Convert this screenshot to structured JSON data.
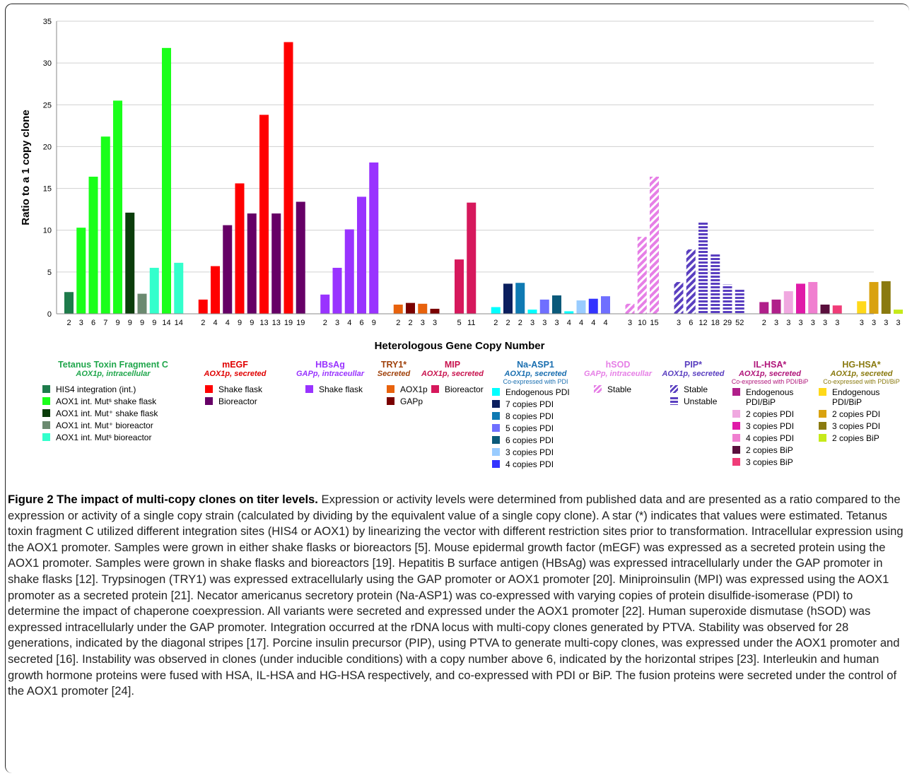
{
  "chart_data": {
    "type": "bar",
    "ylabel": "Ratio to a 1 copy clone",
    "xlabel": "Heterologous Gene Copy Number",
    "ylim": [
      0,
      35
    ],
    "yticks": [
      0,
      5,
      10,
      15,
      20,
      25,
      30,
      35
    ],
    "grid": true,
    "legend_placement": "bottom",
    "bars": [
      {
        "group": "Tetanus Toxin Fragment C",
        "x": "2",
        "value": 2.6,
        "color": "#1e7b4b"
      },
      {
        "group": "Tetanus Toxin Fragment C",
        "x": "3",
        "value": 10.3,
        "color": "#1aff1a"
      },
      {
        "group": "Tetanus Toxin Fragment C",
        "x": "6",
        "value": 16.4,
        "color": "#1aff1a"
      },
      {
        "group": "Tetanus Toxin Fragment C",
        "x": "7",
        "value": 21.2,
        "color": "#1aff1a"
      },
      {
        "group": "Tetanus Toxin Fragment C",
        "x": "9",
        "value": 25.5,
        "color": "#1aff1a"
      },
      {
        "group": "Tetanus Toxin Fragment C",
        "x": "9",
        "value": 12.1,
        "color": "#0b3d0b"
      },
      {
        "group": "Tetanus Toxin Fragment C",
        "x": "9",
        "value": 2.4,
        "color": "#6b8a70"
      },
      {
        "group": "Tetanus Toxin Fragment C",
        "x": "9",
        "value": 5.5,
        "color": "#33ffcc"
      },
      {
        "group": "Tetanus Toxin Fragment C",
        "x": "14",
        "value": 31.8,
        "color": "#1aff1a"
      },
      {
        "group": "Tetanus Toxin Fragment C",
        "x": "14",
        "value": 6.1,
        "color": "#33ffcc"
      },
      {
        "group": "mEGF",
        "x": "2",
        "value": 1.7,
        "color": "#ff0000"
      },
      {
        "group": "mEGF",
        "x": "4",
        "value": 5.7,
        "color": "#ff0000"
      },
      {
        "group": "mEGF",
        "x": "4",
        "value": 10.6,
        "color": "#660066"
      },
      {
        "group": "mEGF",
        "x": "9",
        "value": 15.6,
        "color": "#ff0000"
      },
      {
        "group": "mEGF",
        "x": "9",
        "value": 12.0,
        "color": "#660066"
      },
      {
        "group": "mEGF",
        "x": "13",
        "value": 23.8,
        "color": "#ff0000"
      },
      {
        "group": "mEGF",
        "x": "13",
        "value": 12.0,
        "color": "#660066"
      },
      {
        "group": "mEGF",
        "x": "19",
        "value": 32.5,
        "color": "#ff0000"
      },
      {
        "group": "mEGF",
        "x": "19",
        "value": 13.4,
        "color": "#660066"
      },
      {
        "group": "HBsAg",
        "x": "2",
        "value": 2.3,
        "color": "#9933ff"
      },
      {
        "group": "HBsAg",
        "x": "3",
        "value": 5.5,
        "color": "#9933ff"
      },
      {
        "group": "HBsAg",
        "x": "4",
        "value": 10.1,
        "color": "#9933ff"
      },
      {
        "group": "HBsAg",
        "x": "6",
        "value": 14.0,
        "color": "#9933ff"
      },
      {
        "group": "HBsAg",
        "x": "9",
        "value": 18.1,
        "color": "#9933ff"
      },
      {
        "group": "TRY1*",
        "x": "2",
        "value": 1.1,
        "color": "#e8620c"
      },
      {
        "group": "TRY1*",
        "x": "2",
        "value": 1.3,
        "color": "#7a0000"
      },
      {
        "group": "TRY1*",
        "x": "3",
        "value": 1.2,
        "color": "#e8620c"
      },
      {
        "group": "TRY1*",
        "x": "3",
        "value": 0.6,
        "color": "#7a0000"
      },
      {
        "group": "MIP",
        "x": "5",
        "value": 6.5,
        "color": "#d6185c"
      },
      {
        "group": "MIP",
        "x": "11",
        "value": 13.3,
        "color": "#d6185c"
      },
      {
        "group": "Na-ASP1",
        "x": "2",
        "value": 0.8,
        "color": "#00ffff"
      },
      {
        "group": "Na-ASP1",
        "x": "2",
        "value": 3.6,
        "color": "#0b1f5e"
      },
      {
        "group": "Na-ASP1",
        "x": "2",
        "value": 3.7,
        "color": "#0f7ab3"
      },
      {
        "group": "Na-ASP1",
        "x": "3",
        "value": 0.5,
        "color": "#00ffff"
      },
      {
        "group": "Na-ASP1",
        "x": "3",
        "value": 1.7,
        "color": "#6f6fff"
      },
      {
        "group": "Na-ASP1",
        "x": "3",
        "value": 2.2,
        "color": "#0b5a7a"
      },
      {
        "group": "Na-ASP1",
        "x": "4",
        "value": 0.3,
        "color": "#00ffff"
      },
      {
        "group": "Na-ASP1",
        "x": "4",
        "value": 1.6,
        "color": "#99ccff"
      },
      {
        "group": "Na-ASP1",
        "x": "4",
        "value": 1.8,
        "color": "#3333ff"
      },
      {
        "group": "Na-ASP1",
        "x": "4",
        "value": 2.1,
        "color": "#6f6fff"
      },
      {
        "group": "hSOD",
        "x": "3",
        "value": 1.2,
        "color": "#e67fe6",
        "pattern": "diag"
      },
      {
        "group": "hSOD",
        "x": "10",
        "value": 9.2,
        "color": "#e67fe6",
        "pattern": "diag"
      },
      {
        "group": "hSOD",
        "x": "15",
        "value": 16.4,
        "color": "#e67fe6",
        "pattern": "diag"
      },
      {
        "group": "PIP*",
        "x": "3",
        "value": 3.8,
        "color": "#5a3fc0",
        "pattern": "diag"
      },
      {
        "group": "PIP*",
        "x": "6",
        "value": 7.7,
        "color": "#5a3fc0",
        "pattern": "diag"
      },
      {
        "group": "PIP*",
        "x": "12",
        "value": 11.0,
        "color": "#5a3fc0",
        "pattern": "horiz"
      },
      {
        "group": "PIP*",
        "x": "18",
        "value": 7.1,
        "color": "#5a3fc0",
        "pattern": "horiz"
      },
      {
        "group": "PIP*",
        "x": "29",
        "value": 3.5,
        "color": "#5a3fc0",
        "pattern": "horiz"
      },
      {
        "group": "PIP*",
        "x": "52",
        "value": 3.0,
        "color": "#5a3fc0",
        "pattern": "horiz"
      },
      {
        "group": "IL-HSA*",
        "x": "2",
        "value": 1.4,
        "color": "#b01f8a"
      },
      {
        "group": "IL-HSA*",
        "x": "3",
        "value": 1.7,
        "color": "#b01f8a"
      },
      {
        "group": "IL-HSA*",
        "x": "3",
        "value": 2.7,
        "color": "#f0a8e0"
      },
      {
        "group": "IL-HSA*",
        "x": "3",
        "value": 3.6,
        "color": "#e01aa8"
      },
      {
        "group": "IL-HSA*",
        "x": "3",
        "value": 3.8,
        "color": "#f07fd0"
      },
      {
        "group": "IL-HSA*",
        "x": "3",
        "value": 1.1,
        "color": "#5a0f3d"
      },
      {
        "group": "IL-HSA*",
        "x": "3",
        "value": 1.0,
        "color": "#f03c78"
      },
      {
        "group": "HG-HSA*",
        "x": "3",
        "value": 1.5,
        "color": "#ffd91a"
      },
      {
        "group": "HG-HSA*",
        "x": "3",
        "value": 3.8,
        "color": "#d9a20f"
      },
      {
        "group": "HG-HSA*",
        "x": "3",
        "value": 3.9,
        "color": "#8a7a0f"
      },
      {
        "group": "HG-HSA*",
        "x": "3",
        "value": 0.5,
        "color": "#c6ea1a"
      }
    ]
  },
  "legend_groups": [
    {
      "title": "Tetanus Toxin Fragment C",
      "sub": "AOX1p, intracellular",
      "co": "",
      "color": "#1fa64b",
      "items": [
        {
          "label": "HIS4 integration (int.)",
          "color": "#1e7b4b"
        },
        {
          "label": "AOX1 int. Mutˢ shake flask",
          "color": "#1aff1a"
        },
        {
          "label": "AOX1 int. Mut⁺ shake flask",
          "color": "#0b3d0b"
        },
        {
          "label": "AOX1 int. Mut⁺ bioreactor",
          "color": "#6b8a70"
        },
        {
          "label": "AOX1 int. Mutˢ bioreactor",
          "color": "#33ffcc"
        }
      ]
    },
    {
      "title": "mEGF",
      "sub": "AOX1p, secreted",
      "co": "",
      "color": "#e00000",
      "items": [
        {
          "label": "Shake flask",
          "color": "#ff0000"
        },
        {
          "label": "Bioreactor",
          "color": "#660066"
        }
      ]
    },
    {
      "title": "HBsAg",
      "sub": "GAPp, intraceullar",
      "co": "",
      "color": "#9933ff",
      "items": [
        {
          "label": "Shake flask",
          "color": "#9933ff"
        }
      ]
    },
    {
      "title": "TRY1*",
      "sub": "Secreted",
      "co": "",
      "color": "#a0420c",
      "items": [
        {
          "label": "AOX1p",
          "color": "#e8620c"
        },
        {
          "label": "GAPp",
          "color": "#7a0000"
        }
      ]
    },
    {
      "title": "MIP",
      "sub": "AOX1p, secreted",
      "co": "",
      "color": "#c8134e",
      "items": [
        {
          "label": "Bioreactor",
          "color": "#d6185c"
        }
      ]
    },
    {
      "title": "Na-ASP1",
      "sub": "AOX1p, secreted",
      "co": "Co-expressed with PDI",
      "color": "#1a6fb0",
      "items": [
        {
          "label": "Endogenous PDI",
          "color": "#00ffff"
        },
        {
          "label": "7 copies PDI",
          "color": "#0b1f5e"
        },
        {
          "label": "8 copies PDI",
          "color": "#0f7ab3"
        },
        {
          "label": "5 copies PDI",
          "color": "#6f6fff"
        },
        {
          "label": "6 copies PDI",
          "color": "#0b5a7a"
        },
        {
          "label": "3 copies PDI",
          "color": "#99ccff"
        },
        {
          "label": "4 copies PDI",
          "color": "#3333ff"
        }
      ]
    },
    {
      "title": "hSOD",
      "sub": "GAPp, intraceullar",
      "co": "",
      "color": "#e67fe6",
      "items": [
        {
          "label": "Stable",
          "color": "#e67fe6",
          "pattern": "diag"
        }
      ]
    },
    {
      "title": "PIP*",
      "sub": "AOX1p, secreted",
      "co": "",
      "color": "#5a3fc0",
      "items": [
        {
          "label": "Stable",
          "color": "#5a3fc0",
          "pattern": "diag"
        },
        {
          "label": "Unstable",
          "color": "#5a3fc0",
          "pattern": "horiz"
        }
      ]
    },
    {
      "title": "IL-HSA*",
      "sub": "AOX1p, secreted",
      "co": "Co-expressed with PDI/BiP",
      "color": "#b0157a",
      "items": [
        {
          "label": "Endogenous PDI/BiP",
          "color": "#b01f8a"
        },
        {
          "label": "2 copies PDI",
          "color": "#f0a8e0"
        },
        {
          "label": "3 copies PDI",
          "color": "#e01aa8"
        },
        {
          "label": "4 copies PDI",
          "color": "#f07fd0"
        },
        {
          "label": "2 copies BiP",
          "color": "#5a0f3d"
        },
        {
          "label": "3 copies BiP",
          "color": "#f03c78"
        }
      ]
    },
    {
      "title": "HG-HSA*",
      "sub": "AOX1p, secreted",
      "co": "Co-expressed with PDI/BiP",
      "color": "#8a7a0f",
      "items": [
        {
          "label": "Endogenous PDI/BiP",
          "color": "#ffd91a"
        },
        {
          "label": "2 copies PDI",
          "color": "#d9a20f"
        },
        {
          "label": "3 copies PDI",
          "color": "#8a7a0f"
        },
        {
          "label": "2 copies BiP",
          "color": "#c6ea1a"
        }
      ]
    }
  ],
  "caption": {
    "title": "Figure 2 The impact of multi-copy clones on titer levels.",
    "body": " Expression or activity levels were determined from published data and are presented as a ratio compared to the expression or activity of a single copy strain (calculated by dividing by the equivalent value of a single copy clone). A star (*) indicates that values were estimated. Tetanus toxin fragment C utilized different integration sites (HIS4 or AOX1) by linearizing the vector with different restriction sites prior to transformation. Intracellular expression using the AOX1 promoter. Samples were grown in either shake flasks or bioreactors [5]. Mouse epidermal growth factor (mEGF) was expressed as a secreted protein using the AOX1 promoter. Samples were grown in shake flasks and bioreactors [19]. Hepatitis B surface antigen (HBsAg) was expressed intracellularly under the GAP promoter in shake flasks [12]. Trypsinogen (TRY1) was expressed extracellularly using the GAP promoter or AOX1 promoter  [20]. Miniproinsulin (MPI) was expressed using the AOX1 promoter as a secreted protein [21]. Necator americanus secretory protein (Na-ASP1) was co-expressed with varying copies of protein disulfide-isomerase (PDI) to determine the impact of chaperone coexpression. All variants were secreted and expressed under the AOX1 promoter [22]. Human superoxide dismutase (hSOD) was expressed intracellularly under the GAP promoter. Integration occurred at the rDNA locus with multi-copy clones generated by PTVA. Stability was observed for 28 generations, indicated by the diagonal stripes [17]. Porcine insulin precursor (PIP), using PTVA to generate multi-copy clones, was expressed under the AOX1 promoter and secreted [16]. Instability was observed in clones (under inducible conditions) with a copy number above 6, indicated by the horizontal stripes [23]. Interleukin and human growth hormone proteins were fused with HSA, IL-HSA and HG-HSA respectively, and co-expressed with PDI or BiP. The fusion proteins were secreted under the control of the AOX1 promoter [24]."
  }
}
